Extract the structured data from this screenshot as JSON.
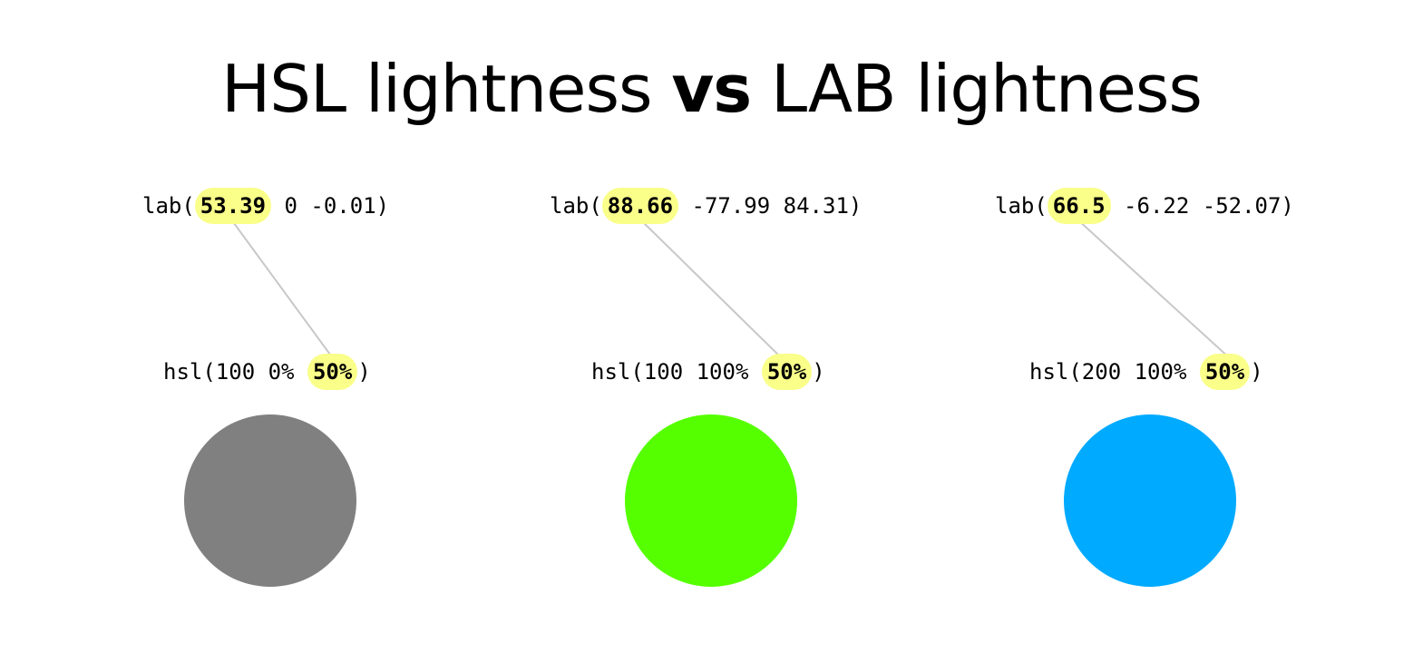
{
  "title": {
    "part1": "HSL lightness ",
    "vs": "vs",
    "part2": " LAB lightness"
  },
  "columns": [
    {
      "lab": {
        "prefix": "lab(",
        "lightness": "53.39",
        "rest": " 0 -0.01)"
      },
      "hsl": {
        "prefix": "hsl(100 0% ",
        "lightness": "50%",
        "suffix": ")"
      },
      "color": "#808080"
    },
    {
      "lab": {
        "prefix": "lab(",
        "lightness": "88.66",
        "rest": " -77.99 84.31)"
      },
      "hsl": {
        "prefix": "hsl(100 100% ",
        "lightness": "50%",
        "suffix": ")"
      },
      "color": "#55ff00"
    },
    {
      "lab": {
        "prefix": "lab(",
        "lightness": "66.5",
        "rest": " -6.22 -52.07)"
      },
      "hsl": {
        "prefix": "hsl(200 100% ",
        "lightness": "50%",
        "suffix": ")"
      },
      "color": "#00aaff"
    }
  ],
  "highlight_color": "#faff8a",
  "connector_color": "#c8c8c8"
}
